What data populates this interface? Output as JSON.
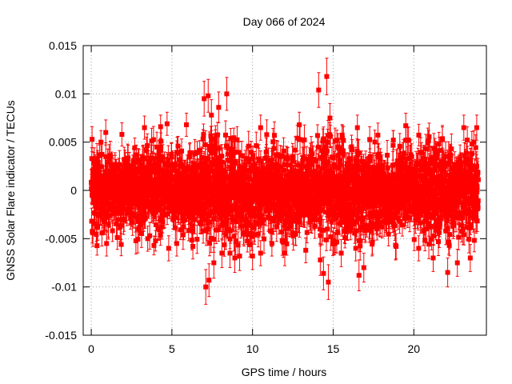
{
  "chart_data": {
    "type": "scatter",
    "title": "Day 066 of 2024",
    "xlabel": "GPS time / hours",
    "ylabel": "GNSS Solar Flare indicator / TECUs",
    "xlim": [
      -0.5,
      24.5
    ],
    "ylim": [
      -0.015,
      0.015
    ],
    "x_ticks": [
      0,
      5,
      10,
      15,
      20
    ],
    "x_tick_labels": [
      "0",
      "5",
      "10",
      "15",
      "20"
    ],
    "y_ticks": [
      -0.015,
      -0.01,
      -0.005,
      0,
      0.005,
      0.01,
      0.015
    ],
    "y_tick_labels": [
      "-0.015",
      "-0.01",
      "-0.005",
      "0",
      "0.005",
      "0.01",
      "0.015"
    ],
    "grid": true,
    "legend": "none",
    "marker": "filled-square",
    "error_bars": true,
    "series": [
      {
        "color": "#ff0000",
        "noise_std": 0.0022,
        "typical_error": 0.0012,
        "points": [
          {
            "x": 0.05,
            "y": 0.0053,
            "err": 0.0013
          },
          {
            "x": 0.1,
            "y": -0.0044,
            "err": 0.0014
          },
          {
            "x": 0.6,
            "y": 0.005,
            "err": 0.0012
          },
          {
            "x": 0.9,
            "y": 0.006,
            "err": 0.0013
          },
          {
            "x": 0.95,
            "y": -0.0055,
            "err": 0.0013
          },
          {
            "x": 1.9,
            "y": 0.0058,
            "err": 0.0012
          },
          {
            "x": 3.3,
            "y": 0.0065,
            "err": 0.0012
          },
          {
            "x": 3.5,
            "y": -0.005,
            "err": 0.0013
          },
          {
            "x": 4.3,
            "y": 0.0066,
            "err": 0.0012
          },
          {
            "x": 4.7,
            "y": 0.0069,
            "err": 0.0012
          },
          {
            "x": 4.8,
            "y": -0.006,
            "err": 0.0013
          },
          {
            "x": 5.3,
            "y": -0.0055,
            "err": 0.0013
          },
          {
            "x": 5.9,
            "y": 0.0068,
            "err": 0.0012
          },
          {
            "x": 6.3,
            "y": -0.0058,
            "err": 0.0013
          },
          {
            "x": 7.0,
            "y": 0.0095,
            "err": 0.0018
          },
          {
            "x": 7.1,
            "y": -0.01,
            "err": 0.0018
          },
          {
            "x": 7.25,
            "y": 0.0098,
            "err": 0.0017
          },
          {
            "x": 7.3,
            "y": -0.0093,
            "err": 0.0017
          },
          {
            "x": 7.45,
            "y": 0.0078,
            "err": 0.0016
          },
          {
            "x": 7.6,
            "y": -0.0075,
            "err": 0.0016
          },
          {
            "x": 7.9,
            "y": 0.0086,
            "err": 0.0016
          },
          {
            "x": 8.1,
            "y": -0.0065,
            "err": 0.0015
          },
          {
            "x": 8.4,
            "y": 0.01,
            "err": 0.0017
          },
          {
            "x": 8.6,
            "y": -0.0065,
            "err": 0.0015
          },
          {
            "x": 8.9,
            "y": -0.007,
            "err": 0.0015
          },
          {
            "x": 9.2,
            "y": -0.0068,
            "err": 0.0015
          },
          {
            "x": 10.0,
            "y": -0.0068,
            "err": 0.0014
          },
          {
            "x": 10.5,
            "y": 0.0065,
            "err": 0.0013
          },
          {
            "x": 10.5,
            "y": -0.0065,
            "err": 0.0013
          },
          {
            "x": 11.2,
            "y": -0.0055,
            "err": 0.0013
          },
          {
            "x": 12.0,
            "y": -0.0065,
            "err": 0.0013
          },
          {
            "x": 12.9,
            "y": 0.0068,
            "err": 0.0013
          },
          {
            "x": 13.3,
            "y": -0.0062,
            "err": 0.0013
          },
          {
            "x": 14.1,
            "y": 0.0104,
            "err": 0.0018
          },
          {
            "x": 14.2,
            "y": -0.0072,
            "err": 0.0016
          },
          {
            "x": 14.4,
            "y": -0.0086,
            "err": 0.0017
          },
          {
            "x": 14.6,
            "y": 0.0118,
            "err": 0.0019
          },
          {
            "x": 14.7,
            "y": -0.0095,
            "err": 0.0018
          },
          {
            "x": 14.8,
            "y": 0.0075,
            "err": 0.0015
          },
          {
            "x": 15.5,
            "y": -0.0065,
            "err": 0.0014
          },
          {
            "x": 16.4,
            "y": -0.006,
            "err": 0.0013
          },
          {
            "x": 16.6,
            "y": -0.0088,
            "err": 0.0016
          },
          {
            "x": 16.9,
            "y": -0.008,
            "err": 0.0015
          },
          {
            "x": 16.5,
            "y": 0.0065,
            "err": 0.0013
          },
          {
            "x": 18.9,
            "y": -0.0058,
            "err": 0.0013
          },
          {
            "x": 19.5,
            "y": 0.0067,
            "err": 0.0013
          },
          {
            "x": 20.3,
            "y": -0.006,
            "err": 0.0013
          },
          {
            "x": 21.2,
            "y": -0.007,
            "err": 0.0014
          },
          {
            "x": 22.1,
            "y": -0.0085,
            "err": 0.0015
          },
          {
            "x": 22.7,
            "y": -0.0075,
            "err": 0.0014
          },
          {
            "x": 23.1,
            "y": 0.0065,
            "err": 0.0013
          },
          {
            "x": 23.5,
            "y": -0.007,
            "err": 0.0014
          },
          {
            "x": 23.9,
            "y": 0.0065,
            "err": 0.0013
          }
        ],
        "dense_band": {
          "x_range": [
            0.0,
            24.0
          ],
          "samples": 2880,
          "y_std_by_hour": [
            0.002,
            0.002,
            0.002,
            0.002,
            0.0021,
            0.0021,
            0.0022,
            0.0028,
            0.0026,
            0.0022,
            0.0021,
            0.0021,
            0.0021,
            0.0021,
            0.0027,
            0.0026,
            0.0022,
            0.0021,
            0.0021,
            0.0021,
            0.0021,
            0.0021,
            0.0021,
            0.0021
          ]
        }
      }
    ]
  }
}
